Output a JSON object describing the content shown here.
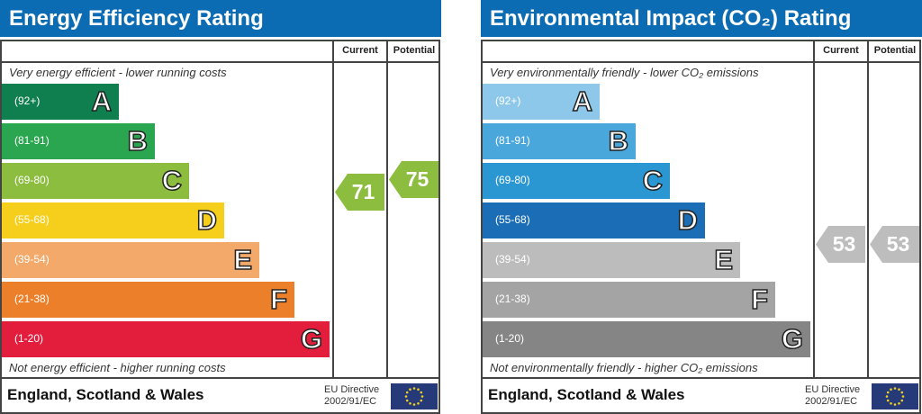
{
  "columns": {
    "current": "Current",
    "potential": "Potential"
  },
  "footer": {
    "region": "England, Scotland & Wales",
    "directive_line1": "EU Directive",
    "directive_line2": "2002/91/EC"
  },
  "panels": [
    {
      "title": "Energy Efficiency Rating",
      "top_note": "Very energy efficient - lower running costs",
      "bottom_note": "Not energy efficient - higher running costs",
      "bands": [
        {
          "range": "(92+)",
          "letter": "A",
          "color": "#0f7f4f"
        },
        {
          "range": "(81-91)",
          "letter": "B",
          "color": "#2aa650"
        },
        {
          "range": "(69-80)",
          "letter": "C",
          "color": "#8cbd3f"
        },
        {
          "range": "(55-68)",
          "letter": "D",
          "color": "#f5cf1c"
        },
        {
          "range": "(39-54)",
          "letter": "E",
          "color": "#f2a969"
        },
        {
          "range": "(21-38)",
          "letter": "F",
          "color": "#ec7f2a"
        },
        {
          "range": "(1-20)",
          "letter": "G",
          "color": "#e31d3c"
        }
      ],
      "current": {
        "value": "71",
        "band": "C",
        "color": "#8cbd3f"
      },
      "potential": {
        "value": "75",
        "band": "C",
        "color": "#8cbd3f"
      }
    },
    {
      "title": "Environmental Impact (CO₂) Rating",
      "top_note": "Very environmentally friendly - lower CO₂ emissions",
      "bottom_note": "Not environmentally friendly - higher CO₂ emissions",
      "bands": [
        {
          "range": "(92+)",
          "letter": "A",
          "color": "#8dc7ea"
        },
        {
          "range": "(81-91)",
          "letter": "B",
          "color": "#4aa7dc"
        },
        {
          "range": "(69-80)",
          "letter": "C",
          "color": "#2a97d2"
        },
        {
          "range": "(55-68)",
          "letter": "D",
          "color": "#1b6db5"
        },
        {
          "range": "(39-54)",
          "letter": "E",
          "color": "#bcbcbc"
        },
        {
          "range": "(21-38)",
          "letter": "F",
          "color": "#a4a4a4"
        },
        {
          "range": "(1-20)",
          "letter": "G",
          "color": "#858585"
        }
      ],
      "current": {
        "value": "53",
        "band": "E",
        "color": "#bdbdbd"
      },
      "potential": {
        "value": "53",
        "band": "E",
        "color": "#bdbdbd"
      }
    }
  ]
}
